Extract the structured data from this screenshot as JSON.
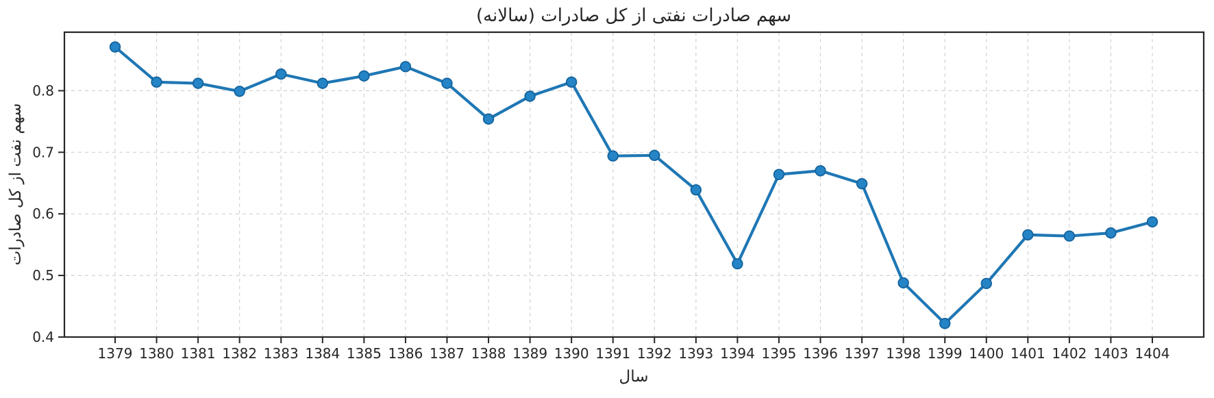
{
  "figure": {
    "background": "#ffffff",
    "text_color": "#262626",
    "spine_color": "#262626",
    "grid_color": "#d2d2d2"
  },
  "chart_data": {
    "type": "line",
    "title": "سهم صادرات نفتی از کل صادرات (سالانه)",
    "xlabel": "سال",
    "ylabel": "سهم نفت از کل صادرات",
    "categories": [
      1379,
      1380,
      1381,
      1382,
      1383,
      1384,
      1385,
      1386,
      1387,
      1388,
      1389,
      1390,
      1391,
      1392,
      1393,
      1394,
      1395,
      1396,
      1397,
      1398,
      1399,
      1400,
      1401,
      1402,
      1403,
      1404
    ],
    "series": [
      {
        "name": "سهم نفت از کل صادرات",
        "values": [
          0.871,
          0.814,
          0.812,
          0.799,
          0.827,
          0.812,
          0.824,
          0.839,
          0.812,
          0.754,
          0.791,
          0.814,
          0.694,
          0.695,
          0.639,
          0.519,
          0.664,
          0.67,
          0.649,
          0.488,
          0.422,
          0.487,
          0.566,
          0.564,
          0.569,
          0.587
        ]
      }
    ],
    "ylim": [
      0.4,
      0.895
    ],
    "yticks": [
      0.4,
      0.5,
      0.6,
      0.7,
      0.8
    ],
    "grid": "dashed",
    "legend": "none",
    "line_color": "#1f77b4",
    "marker_fill": "#2584c6",
    "marker_edge": "#14639c"
  }
}
